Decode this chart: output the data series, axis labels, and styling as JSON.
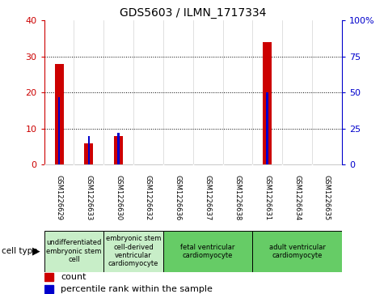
{
  "title": "GDS5603 / ILMN_1717334",
  "samples": [
    "GSM1226629",
    "GSM1226633",
    "GSM1226630",
    "GSM1226632",
    "GSM1226636",
    "GSM1226637",
    "GSM1226638",
    "GSM1226631",
    "GSM1226634",
    "GSM1226635"
  ],
  "counts": [
    28,
    6,
    8,
    0,
    0,
    0,
    0,
    34,
    0,
    0
  ],
  "percentiles": [
    47,
    20,
    22,
    0,
    0,
    0,
    0,
    50,
    0,
    0
  ],
  "cell_types": [
    {
      "label": "undifferentiated\nembryonic stem\ncell",
      "start": 0,
      "end": 2,
      "color": "#c8eec8"
    },
    {
      "label": "embryonic stem\ncell-derived\nventricular\ncardiomyocyte",
      "start": 2,
      "end": 4,
      "color": "#c8eec8"
    },
    {
      "label": "fetal ventricular\ncardiomyocyte",
      "start": 4,
      "end": 7,
      "color": "#66cc66"
    },
    {
      "label": "adult ventricular\ncardiomyocyte",
      "start": 7,
      "end": 10,
      "color": "#66cc66"
    }
  ],
  "ylim_left": [
    0,
    40
  ],
  "ylim_right": [
    0,
    100
  ],
  "yticks_left": [
    0,
    10,
    20,
    30,
    40
  ],
  "yticks_right": [
    0,
    25,
    50,
    75,
    100
  ],
  "ytick_labels_right": [
    "0",
    "25",
    "50",
    "75",
    "100%"
  ],
  "bar_color_count": "#cc0000",
  "bar_color_percentile": "#0000cc",
  "grid_color": "black",
  "chart_bg": "#ffffff",
  "tick_area_bg": "#cccccc",
  "background_color": "#ffffff",
  "count_bar_width": 0.3,
  "pct_bar_width": 0.07
}
